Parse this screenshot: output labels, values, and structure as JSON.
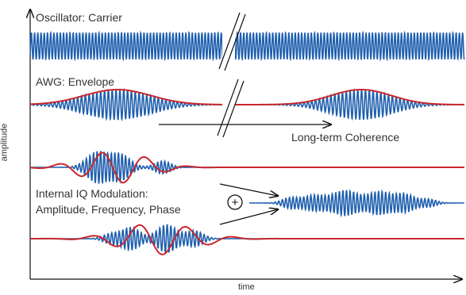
{
  "axes": {
    "x_label": "time",
    "y_label": "amplitude"
  },
  "rows": {
    "carrier_label": "Oscillator: Carrier",
    "envelope_label": "AWG: Envelope",
    "iq_label_line1": "Internal IQ Modulation:",
    "iq_label_line2": "Amplitude, Frequency, Phase"
  },
  "annotations": {
    "coherence_label": "Long-term Coherence",
    "plus_symbol": "+"
  },
  "colors": {
    "signal": "#1f5fae",
    "envelope": "#c8282d",
    "axis": "#111111"
  }
}
